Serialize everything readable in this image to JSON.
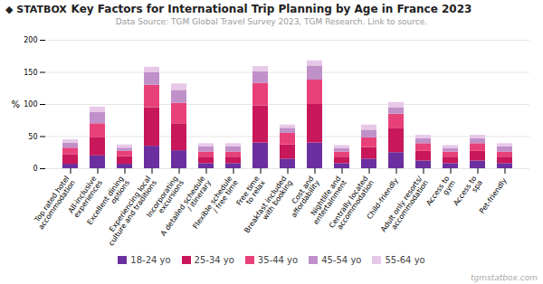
{
  "chart_data": {
    "type": "bar",
    "title": "Key Factors for International Trip Planning by Age in France 2023",
    "subtitle": "Data Source: TGM Global Travel Survey 2023, TGM Research. Link to source.",
    "ylabel": "%",
    "annotations": [
      "◆ STATBOX",
      "tgmstatbox.com"
    ],
    "categories": [
      "Top rated hotel\naccommodation",
      "All-inclusive\nexperiences",
      "Excellent dining\noptions",
      "Experiencing local\nculture and traditions",
      "Incorporating\nexcursions",
      "A detailed schedule\n/ itinerary",
      "Flexible schedule\n/ free time",
      "Free time\nto relax",
      "Breakfast included\nwith booking",
      "Cost and\naffordability",
      "Nightlife and\nentertainment",
      "Centrally located\naccommodation",
      "Child-friendly",
      "Adult only resorts/\naccommodation",
      "Access to\ngym",
      "Access to\nspa",
      "Pet-friendly"
    ],
    "series": [
      {
        "name": "18-24 yo",
        "color": "#6b2fa0",
        "values": [
          7,
          20,
          7,
          35,
          28,
          8,
          8,
          40,
          15,
          40,
          8,
          15,
          25,
          12,
          8,
          12,
          8
        ]
      },
      {
        "name": "25-34 yo",
        "color": "#c8175a",
        "values": [
          15,
          28,
          12,
          60,
          42,
          10,
          10,
          58,
          22,
          60,
          10,
          18,
          38,
          15,
          10,
          15,
          10
        ]
      },
      {
        "name": "35-44 yo",
        "color": "#e8417a",
        "values": [
          10,
          22,
          8,
          35,
          32,
          8,
          8,
          35,
          18,
          38,
          8,
          15,
          22,
          12,
          8,
          12,
          8
        ]
      },
      {
        "name": "45-54 yo",
        "color": "#c090c8",
        "values": [
          8,
          18,
          5,
          20,
          20,
          8,
          8,
          18,
          8,
          22,
          5,
          12,
          10,
          8,
          5,
          8,
          8
        ]
      },
      {
        "name": "55-64 yo",
        "color": "#e8c8e8",
        "values": [
          5,
          8,
          5,
          8,
          10,
          5,
          5,
          8,
          5,
          8,
          5,
          8,
          8,
          5,
          5,
          5,
          5
        ]
      }
    ],
    "stacked": true,
    "ylim": [
      0,
      200
    ],
    "yticks": [
      0,
      50,
      100,
      150,
      200
    ],
    "grid": true,
    "legend": "bottom"
  }
}
